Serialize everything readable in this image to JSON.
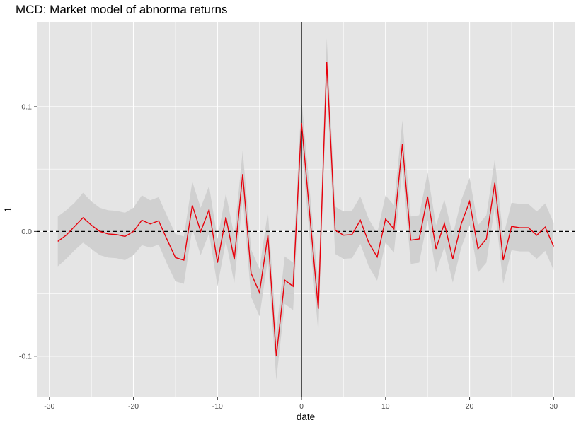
{
  "chart_data": {
    "type": "line",
    "title": "MCD: Market model of abnorma returns",
    "xlabel": "date",
    "ylabel": "1",
    "xlim": [
      -31.5,
      32.5
    ],
    "ylim": [
      -0.133,
      0.168
    ],
    "x_ticks": [
      -30,
      -20,
      -10,
      0,
      10,
      20,
      30
    ],
    "x_tick_labels": [
      "-30",
      "-20",
      "-10",
      "0",
      "10",
      "20",
      "30"
    ],
    "y_ticks": [
      -0.1,
      0.0,
      0.1
    ],
    "y_tick_labels": [
      "-0.1",
      "0.0",
      "0.1"
    ],
    "grid": true,
    "background": "#e5e5e5",
    "grid_color": "#ffffff",
    "line_color": "#e8000b",
    "band_color": "#d0d0d0",
    "vline": {
      "x": 0,
      "color": "#000000"
    },
    "hline": {
      "y": 0,
      "color": "#000000",
      "style": "dashed"
    },
    "series": [
      {
        "x": [
          -29,
          -28,
          -27,
          -26,
          -25,
          -24,
          -23,
          -22,
          -21,
          -20,
          -19,
          -18,
          -17,
          -16,
          -15,
          -14,
          -13,
          -12,
          -11,
          -10,
          -9,
          -8,
          -7,
          -6,
          -5,
          -4,
          -3,
          -2,
          -1,
          0,
          1,
          2,
          3,
          4,
          5,
          6,
          7,
          8,
          9,
          10,
          11,
          12,
          13,
          14,
          15,
          16,
          17,
          18,
          19,
          20,
          21,
          22,
          23,
          24,
          25,
          26,
          27,
          28,
          29,
          30
        ],
        "values": [
          -0.008,
          -0.003,
          0.004,
          0.011,
          0.005,
          0.0,
          -0.002,
          -0.0025,
          -0.004,
          0.0,
          0.009,
          0.006,
          0.0085,
          -0.0065,
          -0.021,
          -0.023,
          0.021,
          0.0,
          0.0175,
          -0.025,
          0.0115,
          -0.0225,
          0.046,
          -0.0335,
          -0.049,
          -0.003,
          -0.1,
          -0.039,
          -0.044,
          0.087,
          0.012,
          -0.062,
          0.136,
          0.001,
          -0.003,
          -0.0025,
          0.009,
          -0.009,
          -0.0205,
          0.01,
          0.002,
          0.07,
          -0.007,
          -0.006,
          0.028,
          -0.014,
          0.0065,
          -0.022,
          0.006,
          0.024,
          -0.014,
          -0.006,
          0.039,
          -0.023,
          0.004,
          0.003,
          0.003,
          -0.003,
          0.0035,
          -0.012
        ],
        "lower": [
          -0.028,
          -0.022,
          -0.015,
          -0.009,
          -0.014,
          -0.019,
          -0.021,
          -0.0215,
          -0.023,
          -0.019,
          -0.011,
          -0.013,
          -0.0105,
          -0.026,
          -0.04,
          -0.042,
          0.002,
          -0.019,
          -0.0015,
          -0.044,
          -0.0075,
          -0.0415,
          0.027,
          -0.0525,
          -0.068,
          -0.022,
          -0.119,
          -0.058,
          -0.063,
          0.068,
          -0.007,
          -0.081,
          0.117,
          -0.018,
          -0.022,
          -0.0215,
          -0.01,
          -0.028,
          -0.0395,
          -0.009,
          -0.017,
          0.051,
          -0.026,
          -0.025,
          0.009,
          -0.033,
          -0.0125,
          -0.041,
          -0.013,
          0.005,
          -0.033,
          -0.025,
          0.02,
          -0.042,
          -0.015,
          -0.016,
          -0.016,
          -0.022,
          -0.0155,
          -0.031
        ],
        "upper": [
          0.012,
          0.017,
          0.023,
          0.031,
          0.024,
          0.019,
          0.017,
          0.0165,
          0.015,
          0.019,
          0.029,
          0.025,
          0.0275,
          0.0125,
          -0.002,
          -0.004,
          0.04,
          0.019,
          0.0365,
          -0.006,
          0.0305,
          -0.0035,
          0.065,
          -0.0145,
          -0.03,
          0.016,
          -0.081,
          -0.02,
          -0.025,
          0.106,
          0.031,
          -0.043,
          0.155,
          0.02,
          0.016,
          0.0165,
          0.028,
          0.01,
          -0.0015,
          0.029,
          0.021,
          0.089,
          0.012,
          0.013,
          0.047,
          0.005,
          0.0255,
          -0.003,
          0.025,
          0.043,
          0.005,
          0.013,
          0.058,
          -0.004,
          0.023,
          0.022,
          0.022,
          0.016,
          0.0225,
          0.007
        ]
      }
    ]
  }
}
